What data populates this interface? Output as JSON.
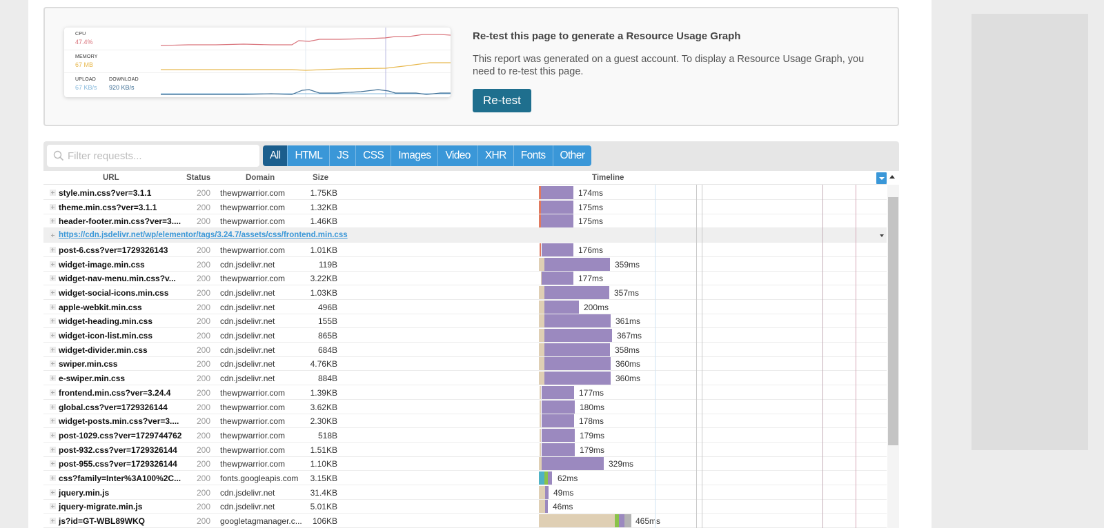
{
  "usage_card": {
    "preview": {
      "cpu_label": "CPU",
      "cpu_value": "47.4%",
      "memory_label": "MEMORY",
      "memory_value": "67 MB",
      "upload_label": "UPLOAD",
      "upload_value": "67 KB/s",
      "download_label": "DOWNLOAD",
      "download_value": "920 KB/s",
      "colors": {
        "cpu": "#d9737b",
        "memory": "#e8b94f",
        "upload": "#86b9dc",
        "download": "#3f6f95"
      }
    },
    "title": "Re-test this page to generate a Resource Usage Graph",
    "description": "This report was generated on a guest account. To display a Resource Usage Graph, you need to re-test this page.",
    "retest_label": "Re-test"
  },
  "filter": {
    "placeholder": "Filter requests...",
    "tabs": [
      {
        "label": "All",
        "active": true
      },
      {
        "label": "HTML",
        "active": false
      },
      {
        "label": "JS",
        "active": false
      },
      {
        "label": "CSS",
        "active": false
      },
      {
        "label": "Images",
        "active": false
      },
      {
        "label": "Video",
        "active": false
      },
      {
        "label": "XHR",
        "active": false
      },
      {
        "label": "Fonts",
        "active": false
      },
      {
        "label": "Other",
        "active": false
      }
    ]
  },
  "table": {
    "columns": {
      "url": "URL",
      "status": "Status",
      "domain": "Domain",
      "size": "Size",
      "timeline": "Timeline"
    },
    "rows": [
      {
        "url": "style.min.css?ver=3.1.1",
        "status": "200",
        "domain": "thewpwarrior.com",
        "size": "1.75KB",
        "time": "174ms"
      },
      {
        "url": "theme.min.css?ver=3.1.1",
        "status": "200",
        "domain": "thewpwarrior.com",
        "size": "1.32KB",
        "time": "175ms"
      },
      {
        "url": "header-footer.min.css?ver=3....",
        "status": "200",
        "domain": "thewpwarrior.com",
        "size": "1.46KB",
        "time": "175ms"
      },
      {
        "group": true,
        "url": "https://cdn.jsdelivr.net/wp/elementor/tags/3.24.7/assets/css/frontend.min.css"
      },
      {
        "url": "post-6.css?ver=1729326143",
        "status": "200",
        "domain": "thewpwarrior.com",
        "size": "1.01KB",
        "time": "176ms"
      },
      {
        "url": "widget-image.min.css",
        "status": "200",
        "domain": "cdn.jsdelivr.net",
        "size": "119B",
        "time": "359ms"
      },
      {
        "url": "widget-nav-menu.min.css?v...",
        "status": "200",
        "domain": "thewpwarrior.com",
        "size": "3.22KB",
        "time": "177ms"
      },
      {
        "url": "widget-social-icons.min.css",
        "status": "200",
        "domain": "cdn.jsdelivr.net",
        "size": "1.03KB",
        "time": "357ms"
      },
      {
        "url": "apple-webkit.min.css",
        "status": "200",
        "domain": "cdn.jsdelivr.net",
        "size": "496B",
        "time": "200ms"
      },
      {
        "url": "widget-heading.min.css",
        "status": "200",
        "domain": "cdn.jsdelivr.net",
        "size": "155B",
        "time": "361ms"
      },
      {
        "url": "widget-icon-list.min.css",
        "status": "200",
        "domain": "cdn.jsdelivr.net",
        "size": "865B",
        "time": "367ms"
      },
      {
        "url": "widget-divider.min.css",
        "status": "200",
        "domain": "cdn.jsdelivr.net",
        "size": "684B",
        "time": "358ms"
      },
      {
        "url": "swiper.min.css",
        "status": "200",
        "domain": "cdn.jsdelivr.net",
        "size": "4.76KB",
        "time": "360ms"
      },
      {
        "url": "e-swiper.min.css",
        "status": "200",
        "domain": "cdn.jsdelivr.net",
        "size": "884B",
        "time": "360ms"
      },
      {
        "url": "frontend.min.css?ver=3.24.4",
        "status": "200",
        "domain": "thewpwarrior.com",
        "size": "1.39KB",
        "time": "177ms"
      },
      {
        "url": "global.css?ver=1729326144",
        "status": "200",
        "domain": "thewpwarrior.com",
        "size": "3.62KB",
        "time": "180ms"
      },
      {
        "url": "widget-posts.min.css?ver=3....",
        "status": "200",
        "domain": "thewpwarrior.com",
        "size": "2.30KB",
        "time": "178ms"
      },
      {
        "url": "post-1029.css?ver=1729744762",
        "status": "200",
        "domain": "thewpwarrior.com",
        "size": "518B",
        "time": "179ms"
      },
      {
        "url": "post-932.css?ver=1729326144",
        "status": "200",
        "domain": "thewpwarrior.com",
        "size": "1.51KB",
        "time": "179ms"
      },
      {
        "url": "post-955.css?ver=1729326144",
        "status": "200",
        "domain": "thewpwarrior.com",
        "size": "1.10KB",
        "time": "329ms"
      },
      {
        "url": "css?family=Inter%3A100%2C...",
        "status": "200",
        "domain": "fonts.googleapis.com",
        "size": "3.15KB",
        "time": "62ms"
      },
      {
        "url": "jquery.min.js",
        "status": "200",
        "domain": "cdn.jsdelivr.net",
        "size": "31.4KB",
        "time": "49ms"
      },
      {
        "url": "jquery-migrate.min.js",
        "status": "200",
        "domain": "cdn.jsdelivr.net",
        "size": "5.01KB",
        "time": "46ms"
      },
      {
        "url": "js?id=GT-WBL89WKQ",
        "status": "200",
        "domain": "googletagmanager.c...",
        "size": "106KB",
        "time": "465ms"
      }
    ]
  }
}
